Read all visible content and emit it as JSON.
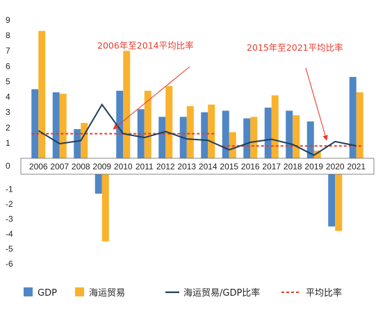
{
  "chart_data": {
    "type": "bar",
    "categories": [
      "2006",
      "2007",
      "2008",
      "2009",
      "2010",
      "2011",
      "2012",
      "2013",
      "2014",
      "2015",
      "2016",
      "2017",
      "2018",
      "2019",
      "2020",
      "2021"
    ],
    "series": [
      {
        "name": "GDP",
        "type": "bar",
        "color": "#4f86c6",
        "values": [
          4.5,
          4.3,
          1.9,
          -1.3,
          4.4,
          3.2,
          2.7,
          2.7,
          3.0,
          3.1,
          2.6,
          3.3,
          3.1,
          2.4,
          -3.5,
          5.3
        ]
      },
      {
        "name": "海运贸易",
        "type": "bar",
        "color": "#f9b22e",
        "values": [
          8.3,
          4.2,
          2.3,
          -4.5,
          7.0,
          4.4,
          4.7,
          3.4,
          3.5,
          1.7,
          2.7,
          4.1,
          2.8,
          0.5,
          -3.8,
          4.3
        ]
      },
      {
        "name": "海运贸易/GDP比率",
        "type": "line",
        "color": "#1e3e58",
        "values": [
          1.8,
          0.95,
          1.15,
          3.5,
          1.6,
          1.35,
          1.74,
          1.26,
          1.17,
          0.55,
          1.04,
          1.24,
          0.9,
          0.2,
          1.09,
          0.81
        ]
      },
      {
        "name": "平均比率",
        "type": "dashed-line",
        "color": "#e83a2a",
        "segments": [
          {
            "from": "2006",
            "to": "2014",
            "value": 1.6
          },
          {
            "from": "2015",
            "to": "2021",
            "value": 0.8
          }
        ]
      }
    ],
    "annotations": [
      {
        "text": "2006年至2014平均比率",
        "color": "#e83a2a"
      },
      {
        "text": "2015年至2021平均比率",
        "color": "#e83a2a"
      }
    ],
    "y_ticks": [
      "9",
      "8",
      "7",
      "6",
      "5",
      "4",
      "3",
      "2",
      "1",
      "0",
      "-1",
      "-2",
      "-3",
      "-4",
      "-5",
      "-6"
    ],
    "ylim": [
      -6,
      9
    ],
    "xlabel": "",
    "ylabel": "",
    "title": "",
    "grid": false,
    "legend_position": "bottom"
  }
}
